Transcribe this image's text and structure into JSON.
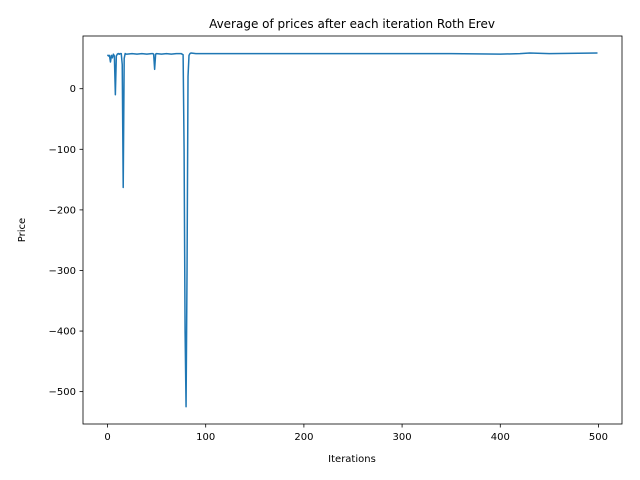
{
  "chart_data": {
    "type": "line",
    "title": "Average of prices after each iteration Roth Erev",
    "xlabel": "Iterations",
    "ylabel": "Price",
    "xlim": [
      -24.95,
      523.95
    ],
    "ylim": [
      -553.4,
      87.0
    ],
    "xticks": [
      0,
      100,
      200,
      300,
      400,
      500
    ],
    "xtick_labels": [
      "0",
      "100",
      "200",
      "300",
      "400",
      "500"
    ],
    "yticks": [
      0,
      -100,
      -200,
      -300,
      -400,
      -500
    ],
    "ytick_labels": [
      "0",
      "−100",
      "−200",
      "−300",
      "−400",
      "−500"
    ],
    "grid": false,
    "legend": "none",
    "line_color": "#1f77b4",
    "series": [
      {
        "x": [
          0,
          1,
          2,
          3,
          4,
          5,
          6,
          7,
          8,
          9,
          10,
          11,
          12,
          13,
          14,
          15,
          16,
          17,
          18,
          19,
          20,
          25,
          30,
          35,
          40,
          45,
          46,
          47,
          48,
          49,
          50,
          55,
          60,
          65,
          70,
          75,
          76,
          77,
          78,
          79,
          80,
          81,
          82,
          83,
          84,
          85,
          90,
          100,
          120,
          150,
          200,
          250,
          300,
          350,
          400,
          420,
          430,
          450,
          499
        ],
        "y": [
          56,
          54,
          55,
          44,
          55,
          51,
          57,
          54,
          -10,
          54,
          57,
          58,
          57,
          58,
          58,
          40,
          -163,
          50,
          58,
          57,
          57,
          58,
          57,
          58,
          57,
          58,
          58,
          57,
          32,
          57,
          58,
          57,
          58,
          57,
          58,
          58,
          57,
          56,
          -100,
          -400,
          -525,
          -300,
          20,
          55,
          58,
          59,
          58,
          58,
          58,
          58,
          58,
          58,
          58,
          58,
          57,
          58,
          59,
          58,
          59
        ]
      }
    ]
  }
}
